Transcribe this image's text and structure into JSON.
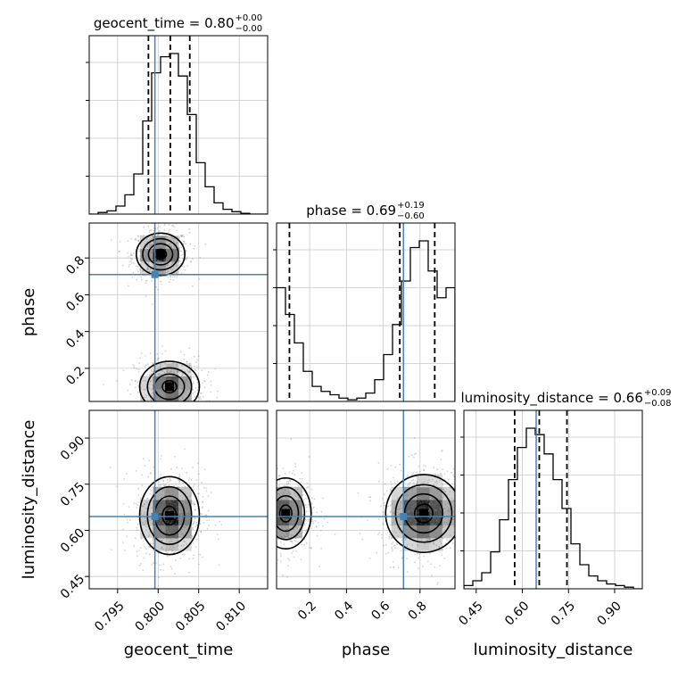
{
  "chart_data": {
    "type": "corner",
    "parameters": [
      "geocent_time",
      "phase",
      "luminosity_distance"
    ],
    "truths": {
      "geocent_time": 0.7996,
      "phase": 0.71,
      "luminosity_distance": 0.645
    },
    "titles": [
      {
        "param": "geocent_time",
        "label": "geocent_time = 0.80",
        "plus": "+0.00",
        "minus": "−0.00"
      },
      {
        "param": "phase",
        "label": "phase = 0.69",
        "plus": "+0.19",
        "minus": "−0.60"
      },
      {
        "param": "luminosity_distance",
        "label": "luminosity_distance = 0.66",
        "plus": "+0.09",
        "minus": "−0.08"
      }
    ],
    "axes": {
      "geocent_time": {
        "range": [
          0.7915,
          0.8135
        ],
        "ticks": [
          0.795,
          0.8,
          0.805,
          0.81
        ],
        "tick_labels": [
          "0.795",
          "0.800",
          "0.805",
          "0.810"
        ]
      },
      "phase": {
        "range": [
          0.02,
          0.99
        ],
        "ticks": [
          0.2,
          0.4,
          0.6,
          0.8
        ],
        "tick_labels": [
          "0.2",
          "0.4",
          "0.6",
          "0.8"
        ]
      },
      "luminosity_distance": {
        "range": [
          0.41,
          0.99
        ],
        "ticks": [
          0.45,
          0.6,
          0.75,
          0.9
        ],
        "tick_labels": [
          "0.45",
          "0.60",
          "0.75",
          "0.90"
        ]
      }
    },
    "histograms": {
      "geocent_time": {
        "quantiles": [
          0.7988,
          0.8015,
          0.8039
        ],
        "bin_edges": [
          0.7915,
          0.7926,
          0.7937,
          0.7948,
          0.7959,
          0.797,
          0.7981,
          0.7992,
          0.8003,
          0.8014,
          0.8025,
          0.8036,
          0.8047,
          0.8058,
          0.8069,
          0.808,
          0.8091,
          0.8102,
          0.8113,
          0.8124,
          0.8135
        ],
        "counts": [
          0.0,
          0.01,
          0.02,
          0.05,
          0.12,
          0.25,
          0.58,
          0.88,
          0.98,
          1.0,
          0.86,
          0.62,
          0.32,
          0.17,
          0.07,
          0.03,
          0.015,
          0.005,
          0.0,
          0.0
        ]
      },
      "phase": {
        "quantiles": [
          0.09,
          0.69,
          0.88
        ],
        "bin_edges": [
          0.02,
          0.0685,
          0.117,
          0.1655,
          0.214,
          0.2625,
          0.311,
          0.3595,
          0.408,
          0.4565,
          0.505,
          0.5535,
          0.602,
          0.6505,
          0.699,
          0.7475,
          0.796,
          0.8445,
          0.893,
          0.9415,
          0.99
        ],
        "counts": [
          0.68,
          0.52,
          0.35,
          0.18,
          0.09,
          0.06,
          0.04,
          0.02,
          0.01,
          0.02,
          0.05,
          0.13,
          0.28,
          0.46,
          0.72,
          0.92,
          0.96,
          0.78,
          0.62,
          0.68
        ]
      },
      "luminosity_distance": {
        "quantiles": [
          0.575,
          0.655,
          0.745
        ],
        "bin_edges": [
          0.41,
          0.439,
          0.468,
          0.497,
          0.526,
          0.555,
          0.584,
          0.613,
          0.642,
          0.671,
          0.7,
          0.729,
          0.758,
          0.787,
          0.816,
          0.845,
          0.874,
          0.903,
          0.932,
          0.961,
          0.99
        ],
        "counts": [
          0.02,
          0.05,
          0.1,
          0.23,
          0.43,
          0.68,
          0.88,
          1.0,
          0.96,
          0.84,
          0.68,
          0.5,
          0.28,
          0.15,
          0.08,
          0.05,
          0.03,
          0.02,
          0.01,
          0.0
        ]
      }
    },
    "pair_modes": {
      "phase_vs_geocent_time": [
        {
          "cx": 0.8003,
          "cy": 0.82,
          "sx": 0.0013,
          "sy": 0.05,
          "weight": 1.0
        },
        {
          "cx": 0.8014,
          "cy": 0.1,
          "sx": 0.0016,
          "sy": 0.06,
          "weight": 0.8
        }
      ],
      "luminosity_distance_vs_geocent_time": [
        {
          "cx": 0.8014,
          "cy": 0.648,
          "sx": 0.0016,
          "sy": 0.055,
          "weight": 1.0
        }
      ],
      "luminosity_distance_vs_phase": [
        {
          "cx": 0.07,
          "cy": 0.655,
          "sx": 0.06,
          "sy": 0.05,
          "weight": 0.75
        },
        {
          "cx": 0.82,
          "cy": 0.655,
          "sx": 0.09,
          "sy": 0.055,
          "weight": 1.0
        }
      ]
    },
    "grid": true,
    "colors": {
      "truth": "#4682b4",
      "hist": "#000000",
      "scatter": "#808080",
      "grid": "#c8c8c8"
    }
  }
}
